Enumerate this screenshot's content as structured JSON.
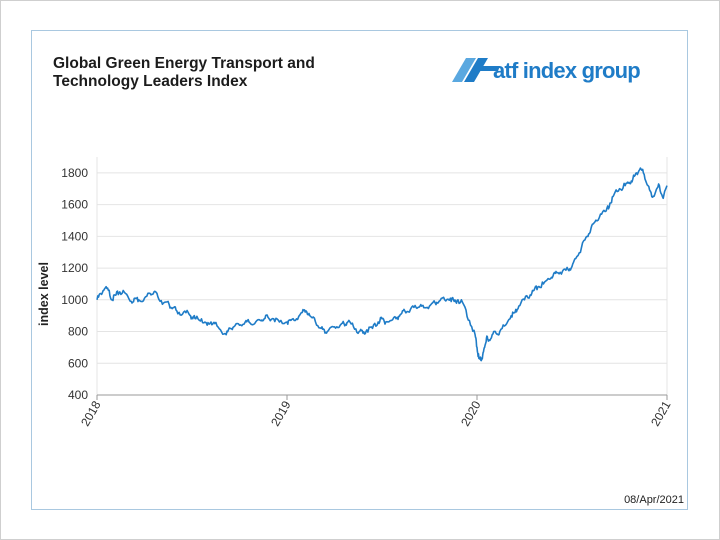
{
  "title_lines": [
    "Global Green Energy Transport and",
    "Technology Leaders Index"
  ],
  "logo_text": "atf index group",
  "date_stamp": "08/Apr/2021",
  "colors": {
    "line": "#1f7cc7",
    "grid": "#e4e4e4",
    "axis": "#999999",
    "logo_blue": "#1f7cc7",
    "logo_mark": "#5aa8e0"
  },
  "chart_data": {
    "type": "line",
    "title": "Global Green Energy Transport and Technology Leaders Index",
    "xlabel": "",
    "ylabel": "index level",
    "ylim": [
      400,
      1900
    ],
    "yticks": [
      400,
      600,
      800,
      1000,
      1200,
      1400,
      1600,
      1800
    ],
    "xticks": [
      "2018",
      "2019",
      "2020",
      "2021"
    ],
    "xlim": [
      2018.0,
      2021.0
    ],
    "grid": true,
    "legend": "none",
    "series": [
      {
        "x": [
          2018.0,
          2018.02,
          2018.04,
          2018.06,
          2018.08,
          2018.1,
          2018.12,
          2018.15,
          2018.18,
          2018.2,
          2018.22,
          2018.25,
          2018.28,
          2018.3,
          2018.32,
          2018.35,
          2018.38,
          2018.4,
          2018.42,
          2018.45,
          2018.48,
          2018.5,
          2018.52,
          2018.55,
          2018.58,
          2018.6,
          2018.62,
          2018.65,
          2018.68,
          2018.7,
          2018.72,
          2018.75,
          2018.78,
          2018.8,
          2018.83,
          2018.86,
          2018.88,
          2018.9,
          2018.93,
          2018.96,
          2019.0,
          2019.02,
          2019.05,
          2019.08,
          2019.1,
          2019.12,
          2019.15,
          2019.18,
          2019.2,
          2019.22,
          2019.25,
          2019.28,
          2019.3,
          2019.32,
          2019.35,
          2019.38,
          2019.4,
          2019.42,
          2019.45,
          2019.48,
          2019.5,
          2019.52,
          2019.55,
          2019.58,
          2019.6,
          2019.62,
          2019.65,
          2019.68,
          2019.7,
          2019.72,
          2019.75,
          2019.78,
          2019.8,
          2019.83,
          2019.86,
          2019.88,
          2019.9,
          2019.93,
          2019.96,
          2019.99,
          2020.0,
          2020.01,
          2020.02,
          2020.03,
          2020.04,
          2020.05,
          2020.06,
          2020.08,
          2020.1,
          2020.12,
          2020.15,
          2020.18,
          2020.2,
          2020.22,
          2020.25,
          2020.28,
          2020.3,
          2020.32,
          2020.35,
          2020.38,
          2020.4,
          2020.42,
          2020.45,
          2020.48,
          2020.5,
          2020.52,
          2020.55,
          2020.58,
          2020.6,
          2020.62,
          2020.65,
          2020.68,
          2020.7,
          2020.72,
          2020.75,
          2020.78,
          2020.8,
          2020.82,
          2020.84,
          2020.86,
          2020.88,
          2020.9,
          2020.92,
          2020.94,
          2020.96,
          2020.98,
          2021.0
        ],
        "values": [
          1000,
          1040,
          1070,
          1060,
          1000,
          1030,
          1050,
          1040,
          990,
          1010,
          1000,
          1010,
          1040,
          1050,
          1020,
          980,
          970,
          950,
          930,
          910,
          920,
          890,
          880,
          880,
          840,
          860,
          850,
          810,
          780,
          820,
          830,
          840,
          860,
          860,
          850,
          870,
          880,
          890,
          880,
          860,
          860,
          870,
          880,
          920,
          930,
          900,
          860,
          820,
          790,
          810,
          830,
          840,
          850,
          860,
          830,
          800,
          790,
          810,
          820,
          860,
          880,
          860,
          870,
          890,
          910,
          930,
          940,
          950,
          960,
          950,
          960,
          980,
          990,
          1000,
          1010,
          990,
          1000,
          970,
          870,
          780,
          700,
          630,
          620,
          650,
          700,
          760,
          740,
          780,
          790,
          800,
          840,
          900,
          920,
          960,
          1000,
          1030,
          1060,
          1080,
          1100,
          1130,
          1150,
          1170,
          1180,
          1190,
          1210,
          1260,
          1330,
          1400,
          1450,
          1490,
          1540,
          1560,
          1610,
          1660,
          1700,
          1720,
          1740,
          1760,
          1800,
          1830,
          1790,
          1720,
          1650,
          1680,
          1720,
          1640,
          1720
        ]
      }
    ]
  }
}
